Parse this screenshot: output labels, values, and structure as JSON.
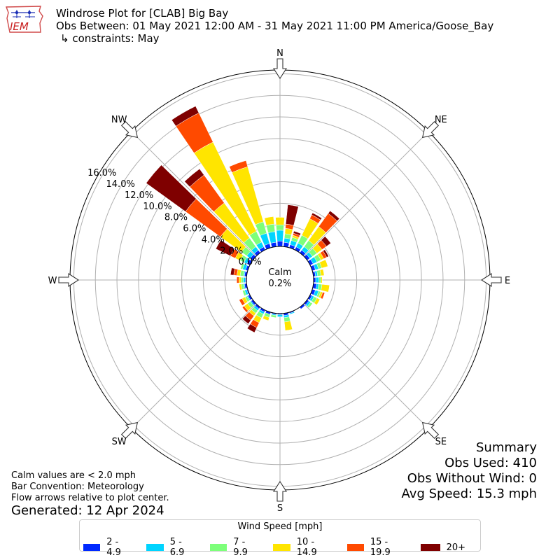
{
  "header": {
    "title": "Windrose Plot for [CLAB] Big Bay",
    "period": "Obs Between: 01 May 2021 12:00 AM - 31 May 2021 11:00 PM America/Goose_Bay",
    "constraints": "↳ constraints: May",
    "logo_text": "IEM"
  },
  "summary": {
    "title": "Summary",
    "obs_used": "Obs Used: 410",
    "obs_without_wind": "Obs Without Wind: 0",
    "avg_speed": "Avg Speed: 15.3 mph"
  },
  "notes": {
    "calm": "Calm values are < 2.0 mph",
    "convention": "Bar Convention: Meteorology",
    "arrows": "Flow arrows relative to plot center.",
    "generated": "Generated: 12 Apr 2024"
  },
  "colors": {
    "bins": [
      "#0029ff",
      "#00d4ff",
      "#7dff7a",
      "#ffe500",
      "#ff4a00",
      "#7f0000"
    ],
    "grid": "#b0b0b0"
  },
  "chart_data": {
    "type": "windrose",
    "calm": {
      "label": "Calm",
      "value": "0.2%"
    },
    "directions": [
      "N",
      "NE",
      "E",
      "SE",
      "S",
      "SW",
      "W",
      "NW"
    ],
    "radial_labels": [
      "0.0%",
      "2.0%",
      "4.0%",
      "6.0%",
      "8.0%",
      "10.0%",
      "12.0%",
      "14.0%",
      "16.0%"
    ],
    "radial_max": 16,
    "legend": {
      "title": "Wind Speed [mph]",
      "entries": [
        "2 - 4.9",
        "5 - 6.9",
        "7 - 9.9",
        "10 - 14.9",
        "15 - 19.9",
        "20+"
      ]
    },
    "sector_width_deg": 10,
    "sectors": [
      {
        "dir": 0,
        "values": [
          0.5,
          1.0,
          0.5,
          0.7,
          0.0,
          0.0
        ]
      },
      {
        "dir": 10,
        "values": [
          0.4,
          0.4,
          0.4,
          0.5,
          0.4,
          1.8
        ]
      },
      {
        "dir": 20,
        "values": [
          0.3,
          0.4,
          0.3,
          0.2,
          0.2,
          0.2
        ]
      },
      {
        "dir": 30,
        "values": [
          0.3,
          0.4,
          0.8,
          1.7,
          0.4,
          0.2
        ]
      },
      {
        "dir": 40,
        "values": [
          0.3,
          0.4,
          0.7,
          1.6,
          1.5,
          0.3
        ]
      },
      {
        "dir": 50,
        "values": [
          0.3,
          0.3,
          0.5,
          0.6,
          0.5,
          0.5
        ]
      },
      {
        "dir": 60,
        "values": [
          0.3,
          0.4,
          0.4,
          0.3,
          0.3,
          0.2
        ]
      },
      {
        "dir": 70,
        "values": [
          0.3,
          0.3,
          0.3,
          0.6,
          0.0,
          0.0
        ]
      },
      {
        "dir": 80,
        "values": [
          0.2,
          0.2,
          0.3,
          0.3,
          0.0,
          0.0
        ]
      },
      {
        "dir": 90,
        "values": [
          0.2,
          0.3,
          0.2,
          0.1,
          0.0,
          0.0
        ]
      },
      {
        "dir": 100,
        "values": [
          0.3,
          0.2,
          0.3,
          0.7,
          0.0,
          0.0
        ]
      },
      {
        "dir": 110,
        "values": [
          0.3,
          0.3,
          0.2,
          0.2,
          0.2,
          0.0
        ]
      },
      {
        "dir": 120,
        "values": [
          0.2,
          0.2,
          0.3,
          0.3,
          0.0,
          0.0
        ]
      },
      {
        "dir": 130,
        "values": [
          0.2,
          0.2,
          0.2,
          0.0,
          0.0,
          0.0
        ]
      },
      {
        "dir": 140,
        "values": [
          0.2,
          0.0,
          0.0,
          0.0,
          0.0,
          0.0
        ]
      },
      {
        "dir": 160,
        "values": [
          0.1,
          0.1,
          0.0,
          0.0,
          0.0,
          0.0
        ]
      },
      {
        "dir": 170,
        "values": [
          0.2,
          0.2,
          0.4,
          0.8,
          0.0,
          0.0
        ]
      },
      {
        "dir": 180,
        "values": [
          0.1,
          0.2,
          0.0,
          0.0,
          0.0,
          0.0
        ]
      },
      {
        "dir": 190,
        "values": [
          0.1,
          0.1,
          0.2,
          0.0,
          0.0,
          0.0
        ]
      },
      {
        "dir": 200,
        "values": [
          0.2,
          0.0,
          0.3,
          0.3,
          0.0,
          0.0
        ]
      },
      {
        "dir": 210,
        "values": [
          0.2,
          0.2,
          0.4,
          0.5,
          0.5,
          0.5
        ]
      },
      {
        "dir": 220,
        "values": [
          0.2,
          0.2,
          0.3,
          0.3,
          0.5,
          0.4
        ]
      },
      {
        "dir": 230,
        "values": [
          0.2,
          0.1,
          0.3,
          0.4,
          0.2,
          0.0
        ]
      },
      {
        "dir": 240,
        "values": [
          0.2,
          0.1,
          0.2,
          0.3,
          0.3,
          0.0
        ]
      },
      {
        "dir": 250,
        "values": [
          0.1,
          0.2,
          0.2,
          0.0,
          0.0,
          0.0
        ]
      },
      {
        "dir": 260,
        "values": [
          0.2,
          0.1,
          0.2,
          0.2,
          0.0,
          0.0
        ]
      },
      {
        "dir": 270,
        "values": [
          0.1,
          0.2,
          0.2,
          0.2,
          0.2,
          0.0
        ]
      },
      {
        "dir": 280,
        "values": [
          0.2,
          0.1,
          0.3,
          0.3,
          0.3,
          0.3
        ]
      },
      {
        "dir": 290,
        "values": [
          0.2,
          0.3,
          0.2,
          0.0,
          0.0,
          0.0
        ]
      },
      {
        "dir": 300,
        "values": [
          0.3,
          0.3,
          0.4,
          0.5,
          0.5,
          1.5
        ]
      },
      {
        "dir": 310,
        "values": [
          0.3,
          0.4,
          0.6,
          2.4,
          4.0,
          4.5
        ]
      },
      {
        "dir": 320,
        "values": [
          0.3,
          0.4,
          1.0,
          4.0,
          3.2,
          0.7
        ]
      },
      {
        "dir": 330,
        "values": [
          0.3,
          0.5,
          1.1,
          9.2,
          3.0,
          0.7
        ]
      },
      {
        "dir": 340,
        "values": [
          0.4,
          1.0,
          1.1,
          5.3,
          0.6,
          0.0
        ]
      },
      {
        "dir": 350,
        "values": [
          0.4,
          1.0,
          0.7,
          0.7,
          0.0,
          0.0
        ]
      }
    ]
  }
}
